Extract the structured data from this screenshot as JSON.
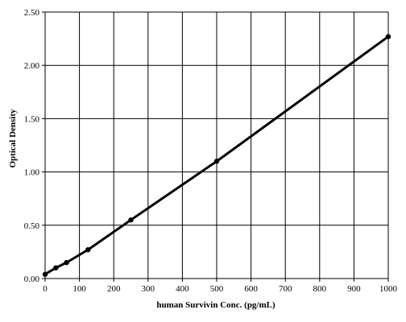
{
  "chart_data": {
    "type": "line",
    "title": "",
    "xlabel": "human Survivin Conc. (pg/mL)",
    "ylabel": "Optical Density",
    "xlim": [
      0,
      1000
    ],
    "ylim": [
      0,
      2.5
    ],
    "xticks": [
      0,
      100,
      200,
      300,
      400,
      500,
      600,
      700,
      800,
      900,
      1000
    ],
    "yticks": [
      0,
      0.5,
      1.0,
      1.5,
      2.0,
      2.5
    ],
    "xtick_labels": [
      "0",
      "100",
      "200",
      "300",
      "400",
      "500",
      "600",
      "700",
      "800",
      "900",
      "1000"
    ],
    "ytick_labels": [
      "0.00",
      "0.50",
      "1.00",
      "1.50",
      "2.00",
      "2.50"
    ],
    "grid": true,
    "series": [
      {
        "x": [
          0,
          31.25,
          62.5,
          125,
          250,
          500,
          1000
        ],
        "y": [
          0.04,
          0.1,
          0.15,
          0.27,
          0.55,
          1.1,
          2.27
        ],
        "color": "#000000",
        "marker": "circle"
      }
    ]
  }
}
